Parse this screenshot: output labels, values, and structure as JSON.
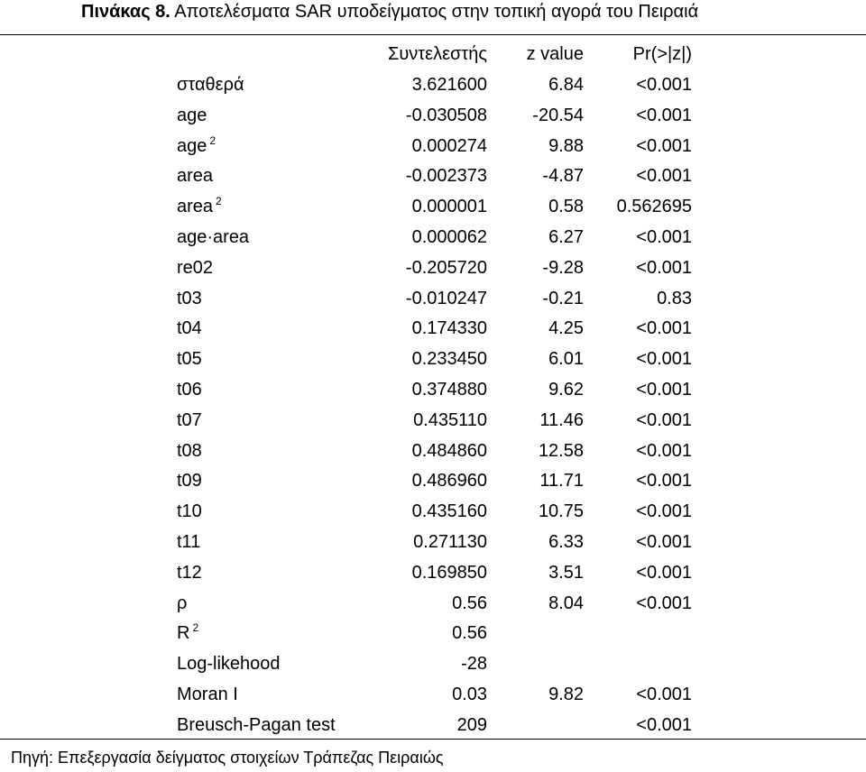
{
  "title": {
    "label": "Πινάκας 8.",
    "text": "Αποτελέσματα SAR υποδείγματος στην τοπική αγορά του Πειραιά"
  },
  "table": {
    "headers": {
      "coef": "Συντελεστής",
      "z": "z value",
      "p": "Pr(>|z|)"
    },
    "rows": [
      {
        "label": "σταθερά",
        "coef": "3.621600",
        "z": "6.84",
        "p": "<0.001"
      },
      {
        "label": "age",
        "coef": "-0.030508",
        "z": "-20.54",
        "p": "<0.001"
      },
      {
        "label": "age",
        "sup": "2",
        "coef": "0.000274",
        "z": "9.88",
        "p": "<0.001"
      },
      {
        "label": "area",
        "coef": "-0.002373",
        "z": "-4.87",
        "p": "<0.001"
      },
      {
        "label": "area",
        "sup": "2",
        "coef": "0.000001",
        "z": "0.58",
        "p": "0.562695"
      },
      {
        "label": "age·area",
        "coef": "0.000062",
        "z": "6.27",
        "p": "<0.001"
      },
      {
        "label": "re02",
        "coef": "-0.205720",
        "z": "-9.28",
        "p": "<0.001"
      },
      {
        "label": "t03",
        "coef": "-0.010247",
        "z": "-0.21",
        "p": "0.83"
      },
      {
        "label": "t04",
        "coef": "0.174330",
        "z": "4.25",
        "p": "<0.001"
      },
      {
        "label": "t05",
        "coef": "0.233450",
        "z": "6.01",
        "p": "<0.001"
      },
      {
        "label": "t06",
        "coef": "0.374880",
        "z": "9.62",
        "p": "<0.001"
      },
      {
        "label": "t07",
        "coef": "0.435110",
        "z": "11.46",
        "p": "<0.001"
      },
      {
        "label": "t08",
        "coef": "0.484860",
        "z": "12.58",
        "p": "<0.001"
      },
      {
        "label": "t09",
        "coef": "0.486960",
        "z": "11.71",
        "p": "<0.001"
      },
      {
        "label": "t10",
        "coef": "0.435160",
        "z": "10.75",
        "p": "<0.001"
      },
      {
        "label": "t11",
        "coef": "0.271130",
        "z": "6.33",
        "p": "<0.001"
      },
      {
        "label": "t12",
        "coef": "0.169850",
        "z": "3.51",
        "p": "<0.001"
      },
      {
        "label": "ρ",
        "coef": "0.56",
        "z": "8.04",
        "p": "<0.001"
      },
      {
        "label": "R",
        "sup": "2",
        "coef": "0.56",
        "z": "",
        "p": ""
      },
      {
        "label": "Log-likehood",
        "coef": "-28",
        "z": "",
        "p": ""
      },
      {
        "label": "Moran I",
        "coef": "0.03",
        "z": "9.82",
        "p": "<0.001"
      },
      {
        "label": "Breusch-Pagan test",
        "coef": "209",
        "z": "",
        "p": "<0.001"
      }
    ]
  },
  "source": "Πηγή: Επεξεργασία δείγματος στοιχείων Τράπεζας Πειραιώς"
}
